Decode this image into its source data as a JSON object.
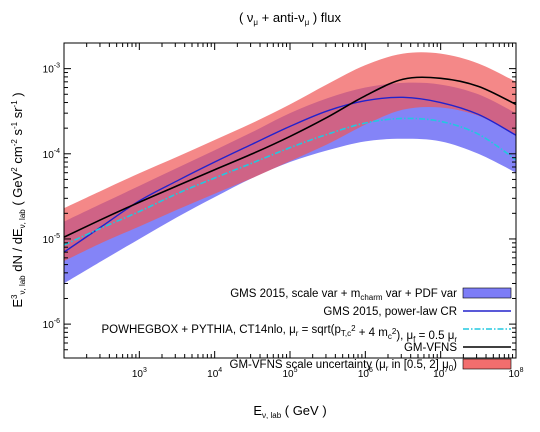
{
  "chart_data": {
    "type": "line",
    "title": "( νμ + anti-νμ )   flux",
    "title_parts": {
      "open": "( ",
      "nu": "ν",
      "mu": "μ",
      "plus": " + anti-",
      "nu2": "ν",
      "mu2": "μ",
      "close": " )   flux"
    },
    "xlabel": "Eν, lab   ( GeV )",
    "xlabel_parts": {
      "main": "E",
      "sub": "ν, lab",
      "rest": "   ( GeV )"
    },
    "ylabel": "E³ν, lab  dN / dEν, lab   ( GeV² cm⁻² s⁻¹ sr⁻¹ )",
    "ylabel_parts": {
      "e": "E",
      "e_sup": "3",
      "e_sub": "ν, lab",
      "dn": "  dN / dE",
      "dn_sub": "ν, lab",
      "u1": "   ( GeV",
      "u1_sup": "2",
      "u2": " cm",
      "u2_sup": "-2",
      "u3": " s",
      "u3_sup": "-1",
      "u4": " sr",
      "u4_sup": "-1",
      "u5": " )"
    },
    "x_scale": "log",
    "y_scale": "log",
    "xlim": [
      100,
      100000000
    ],
    "ylim": [
      4e-07,
      0.002
    ],
    "x_ticks": [
      {
        "base": "10",
        "exp": "3",
        "value": 1000
      },
      {
        "base": "10",
        "exp": "4",
        "value": 10000
      },
      {
        "base": "10",
        "exp": "5",
        "value": 100000
      },
      {
        "base": "10",
        "exp": "6",
        "value": 1000000
      },
      {
        "base": "10",
        "exp": "7",
        "value": 10000000
      },
      {
        "base": "10",
        "exp": "8",
        "value": 100000000
      }
    ],
    "y_ticks": [
      {
        "base": "10",
        "exp": "-6",
        "value": 1e-06
      },
      {
        "base": "10",
        "exp": "-5",
        "value": 1e-05
      },
      {
        "base": "10",
        "exp": "-4",
        "value": 0.0001
      },
      {
        "base": "10",
        "exp": "-3",
        "value": 0.001
      }
    ],
    "grid": false,
    "legend_placement": "bottom-right",
    "colors": {
      "gms_band": "#6f6ff6",
      "gms_line": "#2222cc",
      "powheg_line": "#22c8e0",
      "gmvfns_line": "#000000",
      "gmvfns_band": "#f05555"
    },
    "x": [
      100,
      316,
      1000,
      3162,
      10000,
      31623,
      100000,
      316228,
      1000000,
      3162278,
      10000000,
      31622777,
      100000000
    ],
    "series": [
      {
        "name": "GMS 2015, scale var + m_charm var + PDF var",
        "kind": "band",
        "lower": [
          3e-06,
          5.5e-06,
          1e-05,
          1.8e-05,
          3.1e-05,
          5.2e-05,
          8e-05,
          0.00011,
          0.00014,
          0.00015,
          0.00014,
          0.0001,
          6e-05
        ],
        "upper": [
          1.6e-05,
          2.6e-05,
          4.2e-05,
          6.8e-05,
          0.00011,
          0.00018,
          0.0003,
          0.00045,
          0.0006,
          0.00068,
          0.00065,
          0.0005,
          0.0003
        ]
      },
      {
        "name": "GMS 2015, power-law CR",
        "kind": "line",
        "values": [
          7e-06,
          1.4e-05,
          2.8e-05,
          4.8e-05,
          8e-05,
          0.00013,
          0.00021,
          0.00032,
          0.00042,
          0.00046,
          0.0004,
          0.00029,
          0.000165
        ]
      },
      {
        "name": "POWHEGBOX + PYTHIA, CT14nlo, μr = sqrt(pT,c² + 4 mc²), μf = 0.5 μr",
        "kind": "dashdot",
        "values": [
          8.5e-06,
          1.35e-05,
          2.1e-05,
          3.4e-05,
          5.2e-05,
          7.8e-05,
          0.000118,
          0.00017,
          0.00023,
          0.00026,
          0.00024,
          0.00017,
          8.5e-05
        ]
      },
      {
        "name": "GM-VFNS",
        "kind": "line",
        "values": [
          1.05e-05,
          1.7e-05,
          2.7e-05,
          4.2e-05,
          6.5e-05,
          0.0001,
          0.00016,
          0.00027,
          0.00048,
          0.00075,
          0.00077,
          0.00062,
          0.00038
        ]
      },
      {
        "name": "GM-VFNS scale uncertainty (μr in [0.5, 2] μ0)",
        "kind": "band",
        "lower": [
          5.5e-06,
          9e-06,
          1.4e-05,
          2.2e-05,
          3.4e-05,
          5.2e-05,
          8.2e-05,
          0.00013,
          0.00022,
          0.00033,
          0.00035,
          0.00028,
          0.00017
        ],
        "upper": [
          2.3e-05,
          3.7e-05,
          5.9e-05,
          9.2e-05,
          0.000145,
          0.00023,
          0.00038,
          0.00066,
          0.0011,
          0.0015,
          0.0015,
          0.00115,
          0.0007
        ]
      }
    ],
    "legend": [
      {
        "parts": [
          "GMS 2015, scale var + m",
          "charm",
          " var + PDF var"
        ],
        "fmt": "sub"
      },
      {
        "parts": [
          "GMS 2015, power-law CR"
        ],
        "fmt": "plain"
      },
      {
        "parts": [
          "POWHEGBOX + PYTHIA, CT14nlo, μ",
          "r",
          " = sqrt(p",
          "T,c",
          "",
          "2",
          " + 4 m",
          "c",
          "",
          "2",
          "), μ",
          "f",
          " = 0.5 μ",
          "r"
        ],
        "fmt": "powheg"
      },
      {
        "parts": [
          "GM-VFNS"
        ],
        "fmt": "plain"
      },
      {
        "parts": [
          "GM-VFNS scale uncertainty (μ",
          "r",
          " in [0.5, 2] μ",
          "0",
          ")"
        ],
        "fmt": "sub"
      }
    ]
  }
}
